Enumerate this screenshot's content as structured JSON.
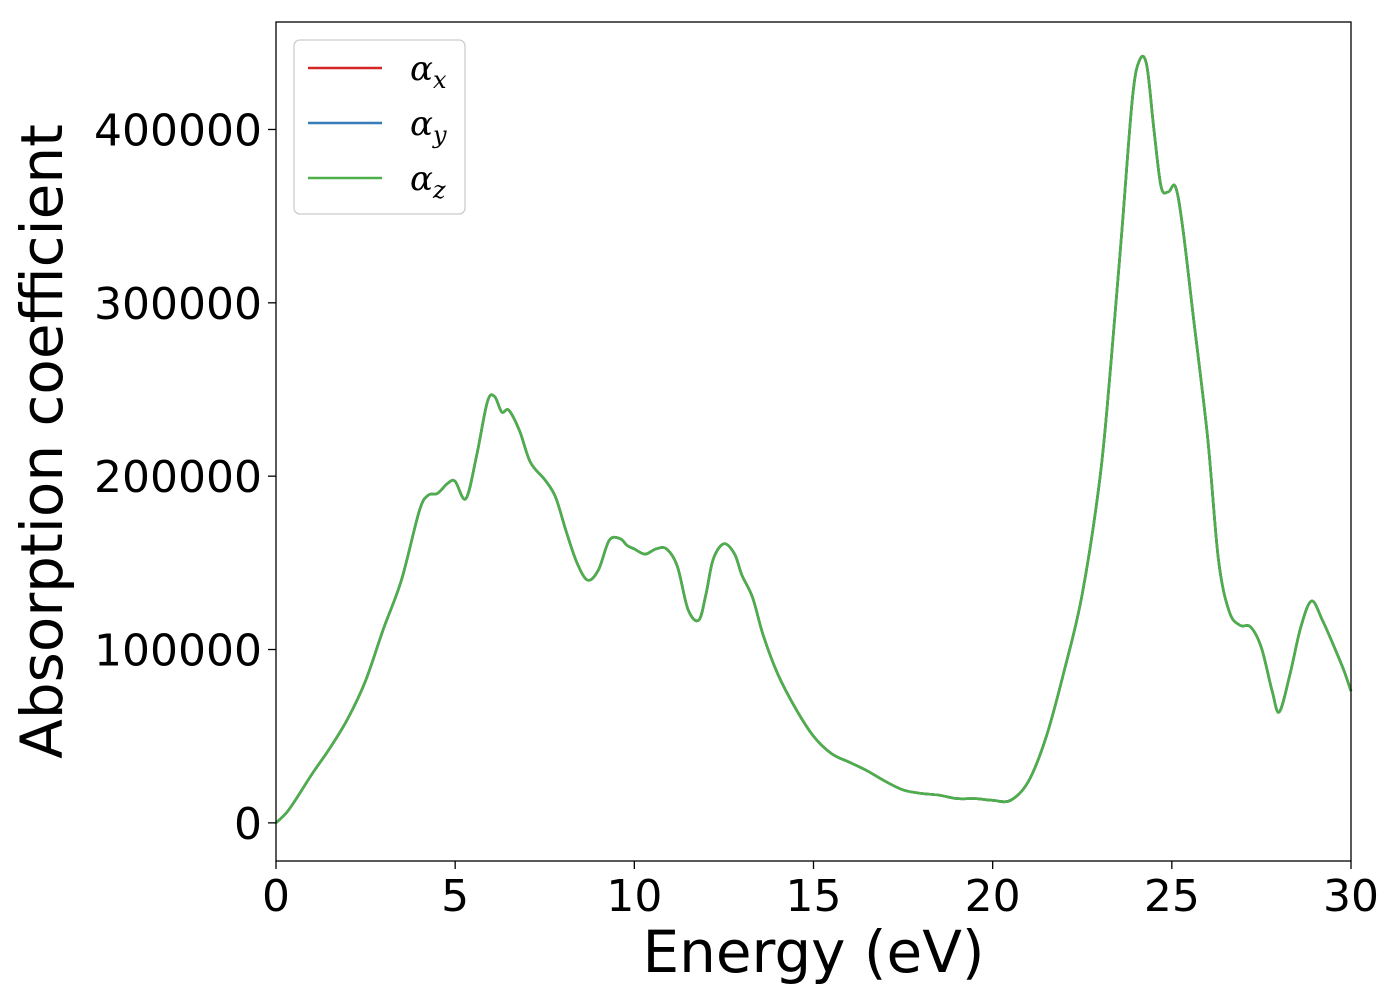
{
  "chart_data": {
    "type": "line",
    "title": "",
    "xlabel": "Energy (eV)",
    "ylabel": "Absorption coefficient",
    "xlim": [
      0,
      30
    ],
    "ylim": [
      -22000,
      462000
    ],
    "xticks": [
      0,
      5,
      10,
      15,
      20,
      25,
      30
    ],
    "yticks": [
      0,
      100000,
      200000,
      300000,
      400000
    ],
    "grid": false,
    "legend_position": "top-left",
    "x": [
      0,
      0.3,
      0.6,
      1.0,
      1.5,
      2.0,
      2.5,
      3.0,
      3.5,
      4.0,
      4.25,
      4.5,
      4.8,
      5.0,
      5.3,
      5.6,
      5.9,
      6.1,
      6.3,
      6.5,
      6.8,
      7.1,
      7.5,
      7.8,
      8.1,
      8.4,
      8.7,
      9.0,
      9.3,
      9.6,
      9.8,
      10.0,
      10.3,
      10.6,
      10.9,
      11.2,
      11.5,
      11.8,
      12.0,
      12.2,
      12.5,
      12.8,
      13.0,
      13.3,
      13.6,
      14.0,
      14.5,
      15.0,
      15.5,
      16.0,
      16.5,
      17.0,
      17.5,
      18.0,
      18.5,
      19.0,
      19.5,
      20.0,
      20.5,
      21.0,
      21.5,
      22.0,
      22.5,
      23.0,
      23.3,
      23.6,
      23.9,
      24.1,
      24.3,
      24.5,
      24.7,
      24.9,
      25.1,
      25.3,
      25.6,
      26.0,
      26.3,
      26.6,
      26.9,
      27.2,
      27.5,
      27.8,
      28.0,
      28.3,
      28.6,
      28.9,
      29.2,
      29.5,
      29.8,
      30.0
    ],
    "series": [
      {
        "name": "α_x",
        "color": "#d62728",
        "values": [
          0,
          6000,
          15000,
          28000,
          43000,
          60000,
          82000,
          112000,
          140000,
          180000,
          189000,
          190000,
          196000,
          197000,
          187000,
          212000,
          243000,
          246000,
          237000,
          238000,
          226000,
          208000,
          198000,
          188000,
          168000,
          150000,
          140000,
          146000,
          163000,
          164000,
          160000,
          158000,
          155000,
          158000,
          158000,
          148000,
          123000,
          117000,
          132000,
          152000,
          161000,
          155000,
          143000,
          130000,
          108000,
          86000,
          66000,
          50000,
          40000,
          35000,
          30000,
          24000,
          19000,
          17000,
          16000,
          14000,
          14000,
          13000,
          13000,
          24000,
          50000,
          88000,
          132000,
          200000,
          265000,
          340000,
          418000,
          440000,
          437000,
          400000,
          367000,
          364000,
          367000,
          344000,
          292000,
          222000,
          152000,
          122000,
          114000,
          113000,
          101000,
          76000,
          64000,
          86000,
          113000,
          128000,
          117000,
          103000,
          88000,
          76000
        ]
      },
      {
        "name": "α_y",
        "color": "#377eb8",
        "values": [
          0,
          6000,
          15000,
          28000,
          43000,
          60000,
          82000,
          112000,
          140000,
          180000,
          189000,
          190000,
          196000,
          197000,
          187000,
          212000,
          243000,
          246000,
          237000,
          238000,
          226000,
          208000,
          198000,
          188000,
          168000,
          150000,
          140000,
          146000,
          163000,
          164000,
          160000,
          158000,
          155000,
          158000,
          158000,
          148000,
          123000,
          117000,
          132000,
          152000,
          161000,
          155000,
          143000,
          130000,
          108000,
          86000,
          66000,
          50000,
          40000,
          35000,
          30000,
          24000,
          19000,
          17000,
          16000,
          14000,
          14000,
          13000,
          13000,
          24000,
          50000,
          88000,
          132000,
          200000,
          265000,
          340000,
          418000,
          440000,
          437000,
          400000,
          367000,
          364000,
          367000,
          344000,
          292000,
          222000,
          152000,
          122000,
          114000,
          113000,
          101000,
          76000,
          64000,
          86000,
          113000,
          128000,
          117000,
          103000,
          88000,
          76000
        ]
      },
      {
        "name": "α_z",
        "color": "#4daf4a",
        "values": [
          0,
          6000,
          15000,
          28000,
          43000,
          60000,
          82000,
          112000,
          140000,
          180000,
          189000,
          190000,
          196000,
          197000,
          187000,
          212000,
          243000,
          246000,
          237000,
          238000,
          226000,
          208000,
          198000,
          188000,
          168000,
          150000,
          140000,
          146000,
          163000,
          164000,
          160000,
          158000,
          155000,
          158000,
          158000,
          148000,
          123000,
          117000,
          132000,
          152000,
          161000,
          155000,
          143000,
          130000,
          108000,
          86000,
          66000,
          50000,
          40000,
          35000,
          30000,
          24000,
          19000,
          17000,
          16000,
          14000,
          14000,
          13000,
          13000,
          24000,
          50000,
          88000,
          132000,
          200000,
          265000,
          340000,
          418000,
          440000,
          437000,
          400000,
          367000,
          364000,
          367000,
          344000,
          292000,
          222000,
          152000,
          122000,
          114000,
          113000,
          101000,
          76000,
          64000,
          86000,
          113000,
          128000,
          117000,
          103000,
          88000,
          76000
        ]
      }
    ],
    "legend": [
      {
        "symbol": "α",
        "sub": "x",
        "color": "#d62728"
      },
      {
        "symbol": "α",
        "sub": "y",
        "color": "#377eb8"
      },
      {
        "symbol": "α",
        "sub": "z",
        "color": "#4daf4a"
      }
    ]
  }
}
